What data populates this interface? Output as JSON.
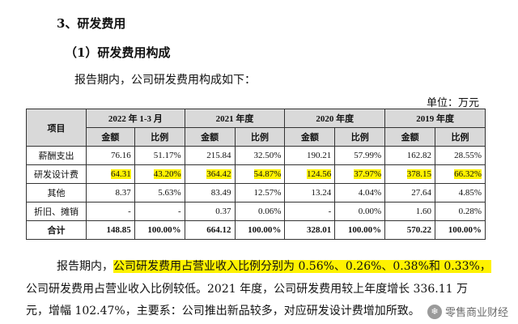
{
  "section_title": "3、研发费用",
  "subsection_title": "（1）研发费用构成",
  "intro": "报告期内，公司研发费用构成如下：",
  "unit": "单位：万元",
  "table": {
    "item_header": "项目",
    "periods": [
      "2022 年 1-3 月",
      "2021 年度",
      "2020 年度",
      "2019 年度"
    ],
    "sub_headers": [
      "金额",
      "比例"
    ],
    "rows": [
      {
        "label": "薪酬支出",
        "cells": [
          "76.16",
          "51.17%",
          "215.84",
          "32.50%",
          "190.21",
          "57.99%",
          "162.82",
          "28.55%"
        ]
      },
      {
        "label": "研发设计费",
        "cells": [
          "64.31",
          "43.20%",
          "364.42",
          "54.87%",
          "124.56",
          "37.97%",
          "378.15",
          "66.32%"
        ]
      },
      {
        "label": "其他",
        "cells": [
          "8.37",
          "5.63%",
          "83.49",
          "12.57%",
          "13.24",
          "4.04%",
          "27.64",
          "4.85%"
        ]
      },
      {
        "label": "折旧、摊销",
        "cells": [
          "-",
          "-",
          "0.37",
          "0.06%",
          "-",
          "0.00%",
          "1.60",
          "0.28%"
        ]
      },
      {
        "label": "合计",
        "cells": [
          "148.85",
          "100.00%",
          "664.12",
          "100.00%",
          "328.01",
          "100.00%",
          "570.22",
          "100.00%"
        ]
      }
    ],
    "highlight_color": "#fff200"
  },
  "paragraph": {
    "line1_plain": "报告期内，",
    "line1_highlight": "公司研发费用占营业收入比例分别为 0.56%、0.26%、0.38%和 0.33%，",
    "line2": "公司研发费用占营业收入比例较低。2021 年度，公司研发费用较上年度增长 336.11 万",
    "line3": "元，增幅 102.47%，主要系：公司推出新品较多，对应研发设计费增加所致。"
  },
  "watermark": {
    "icon": "snowflake-logo-icon",
    "text": "零售商业财经"
  }
}
